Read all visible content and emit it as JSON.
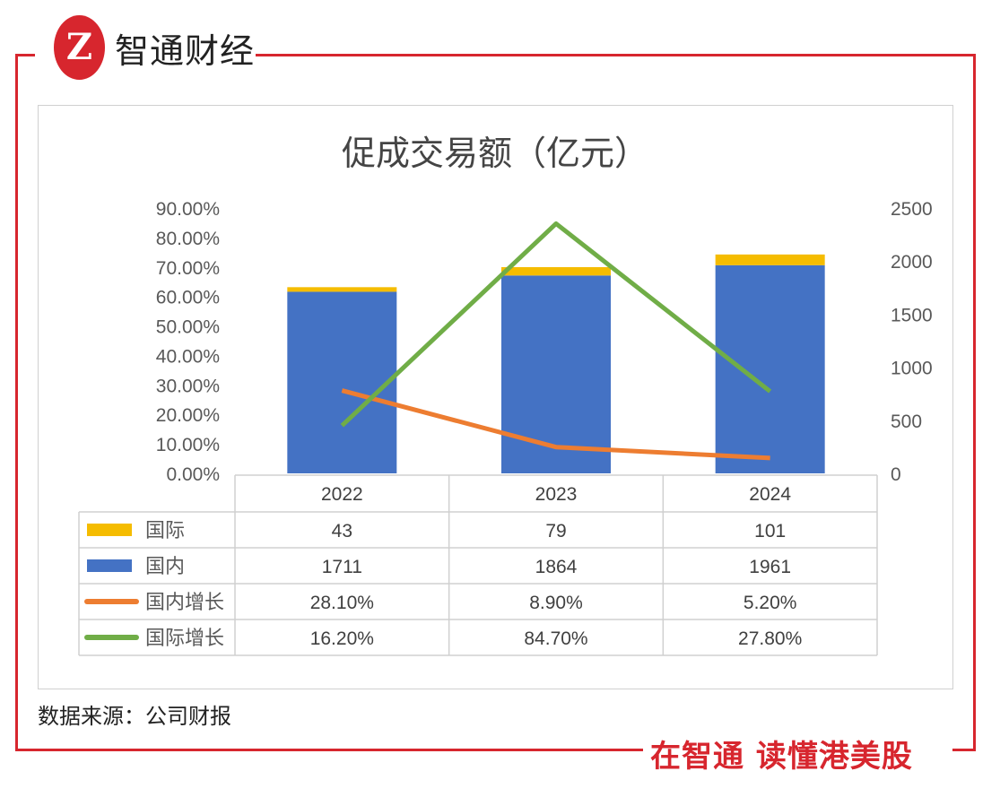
{
  "brand": {
    "logo_text": "智通财经",
    "logo_mark": "Z",
    "slogan": "在智通  读懂港美股"
  },
  "source": "数据来源：公司财报",
  "colors": {
    "frame": "#d7262e",
    "international": "#f5bc00",
    "domestic": "#4472c4",
    "domestic_growth": "#ed7d31",
    "international_growth": "#70ad47"
  },
  "chart_data": {
    "type": "bar",
    "title": "促成交易额（亿元）",
    "categories": [
      "2022",
      "2023",
      "2024"
    ],
    "stacked": true,
    "left_axis": {
      "range": [
        0,
        90
      ],
      "unit": "%",
      "ticks": [
        "0.00%",
        "10.00%",
        "20.00%",
        "30.00%",
        "40.00%",
        "50.00%",
        "60.00%",
        "70.00%",
        "80.00%",
        "90.00%"
      ]
    },
    "right_axis": {
      "range": [
        0,
        2500
      ],
      "ticks": [
        "0",
        "500",
        "1000",
        "1500",
        "2000",
        "2500"
      ]
    },
    "series": [
      {
        "name": "国际",
        "kind": "bar",
        "axis": "right",
        "values": [
          43,
          79,
          101
        ],
        "labels": [
          "43",
          "79",
          "101"
        ],
        "color": "#f5bc00"
      },
      {
        "name": "国内",
        "kind": "bar",
        "axis": "right",
        "values": [
          1711,
          1864,
          1961
        ],
        "labels": [
          "1711",
          "1864",
          "1961"
        ],
        "color": "#4472c4"
      },
      {
        "name": "国内增长",
        "kind": "line",
        "axis": "left",
        "values": [
          28.1,
          8.9,
          5.2
        ],
        "labels": [
          "28.10%",
          "8.90%",
          "5.20%"
        ],
        "color": "#ed7d31"
      },
      {
        "name": "国际增长",
        "kind": "line",
        "axis": "left",
        "values": [
          16.2,
          84.7,
          27.8
        ],
        "labels": [
          "16.20%",
          "84.70%",
          "27.80%"
        ],
        "color": "#70ad47"
      }
    ],
    "grid": false,
    "legend": "data-table below chart"
  }
}
